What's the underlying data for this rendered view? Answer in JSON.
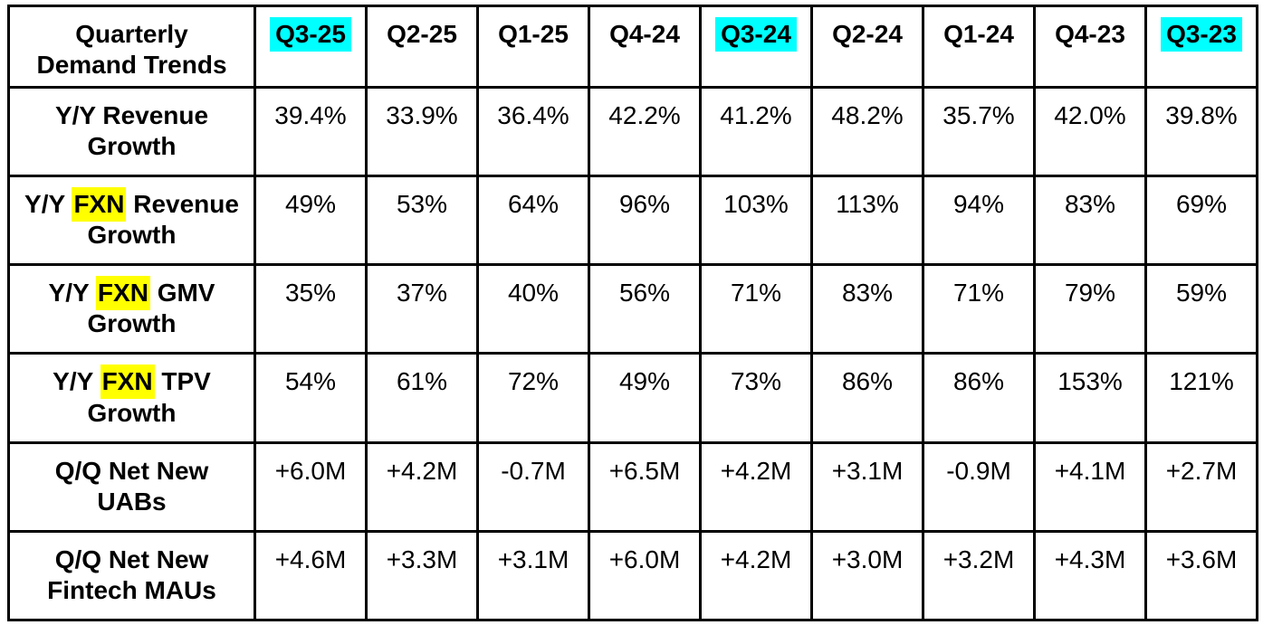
{
  "colors": {
    "background": "#FFFFFF",
    "border": "#000000",
    "text": "#000000",
    "quarter_highlight": "#00FFFF",
    "metric_highlight": "#FFFF00"
  },
  "table": {
    "title": "Quarterly\nDemand Trends",
    "columns": [
      {
        "label": "Q3-25",
        "highlighted": true
      },
      {
        "label": "Q2-25",
        "highlighted": false
      },
      {
        "label": "Q1-25",
        "highlighted": false
      },
      {
        "label": "Q4-24",
        "highlighted": false
      },
      {
        "label": "Q3-24",
        "highlighted": true
      },
      {
        "label": "Q2-24",
        "highlighted": false
      },
      {
        "label": "Q1-24",
        "highlighted": false
      },
      {
        "label": "Q4-23",
        "highlighted": false
      },
      {
        "label": "Q3-23",
        "highlighted": true
      }
    ],
    "rows": [
      {
        "name": "yy-revenue-growth",
        "label_segments": [
          {
            "text": "Y/Y Revenue\nGrowth",
            "highlighted": false
          }
        ],
        "values": [
          "39.4%",
          "33.9%",
          "36.4%",
          "42.2%",
          "41.2%",
          "48.2%",
          "35.7%",
          "42.0%",
          "39.8%"
        ]
      },
      {
        "name": "yy-fxn-revenue-growth",
        "label_segments": [
          {
            "text": "Y/Y ",
            "highlighted": false
          },
          {
            "text": "FXN",
            "highlighted": true
          },
          {
            "text": " Revenue\nGrowth",
            "highlighted": false
          }
        ],
        "values": [
          "49%",
          "53%",
          "64%",
          "96%",
          "103%",
          "113%",
          "94%",
          "83%",
          "69%"
        ]
      },
      {
        "name": "yy-fxn-gmv-growth",
        "label_segments": [
          {
            "text": "Y/Y ",
            "highlighted": false
          },
          {
            "text": "FXN",
            "highlighted": true
          },
          {
            "text": " GMV\nGrowth",
            "highlighted": false
          }
        ],
        "values": [
          "35%",
          "37%",
          "40%",
          "56%",
          "71%",
          "83%",
          "71%",
          "79%",
          "59%"
        ]
      },
      {
        "name": "yy-fxn-tpv-growth",
        "label_segments": [
          {
            "text": "Y/Y ",
            "highlighted": false
          },
          {
            "text": "FXN",
            "highlighted": true
          },
          {
            "text": " TPV\nGrowth",
            "highlighted": false
          }
        ],
        "values": [
          "54%",
          "61%",
          "72%",
          "49%",
          "73%",
          "86%",
          "86%",
          "153%",
          "121%"
        ]
      },
      {
        "name": "qq-net-new-uabs",
        "label_segments": [
          {
            "text": "Q/Q Net New\nUABs",
            "highlighted": false
          }
        ],
        "values": [
          "+6.0M",
          "+4.2M",
          "-0.7M",
          "+6.5M",
          "+4.2M",
          "+3.1M",
          "-0.9M",
          "+4.1M",
          "+2.7M"
        ]
      },
      {
        "name": "qq-net-new-fintech-maus",
        "label_segments": [
          {
            "text": "Q/Q Net New\nFintech MAUs",
            "highlighted": false
          }
        ],
        "values": [
          "+4.6M",
          "+3.3M",
          "+3.1M",
          "+6.0M",
          "+4.2M",
          "+3.0M",
          "+3.2M",
          "+4.3M",
          "+3.6M"
        ]
      }
    ]
  },
  "chart_data": {
    "type": "table",
    "title": "Quarterly Demand Trends",
    "categories": [
      "Q3-25",
      "Q2-25",
      "Q1-25",
      "Q4-24",
      "Q3-24",
      "Q2-24",
      "Q1-24",
      "Q4-23",
      "Q3-23"
    ],
    "highlighted_categories": [
      "Q3-25",
      "Q3-24",
      "Q3-23"
    ],
    "series": [
      {
        "name": "Y/Y Revenue Growth",
        "values": [
          39.4,
          33.9,
          36.4,
          42.2,
          41.2,
          48.2,
          35.7,
          42.0,
          39.8
        ],
        "unit": "%"
      },
      {
        "name": "Y/Y FXN Revenue Growth",
        "values": [
          49,
          53,
          64,
          96,
          103,
          113,
          94,
          83,
          69
        ],
        "unit": "%"
      },
      {
        "name": "Y/Y FXN GMV Growth",
        "values": [
          35,
          37,
          40,
          56,
          71,
          83,
          71,
          79,
          59
        ],
        "unit": "%"
      },
      {
        "name": "Y/Y FXN TPV Growth",
        "values": [
          54,
          61,
          72,
          49,
          73,
          86,
          86,
          153,
          121
        ],
        "unit": "%"
      },
      {
        "name": "Q/Q Net New UABs",
        "values": [
          6.0,
          4.2,
          -0.7,
          6.5,
          4.2,
          3.1,
          -0.9,
          4.1,
          2.7
        ],
        "unit": "M"
      },
      {
        "name": "Q/Q Net New Fintech MAUs",
        "values": [
          4.6,
          3.3,
          3.1,
          6.0,
          4.2,
          3.0,
          3.2,
          4.3,
          3.6
        ],
        "unit": "M"
      }
    ]
  }
}
